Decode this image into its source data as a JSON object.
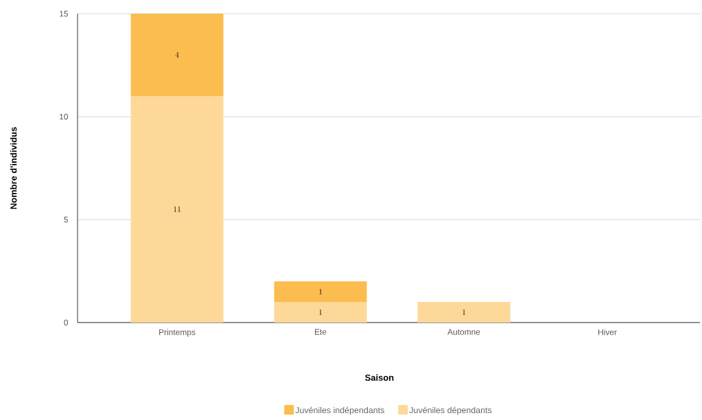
{
  "chart_data": {
    "type": "bar",
    "stacked": true,
    "xlabel": "Saison",
    "ylabel": "Nombre d'individus",
    "categories": [
      "Printemps",
      "Ete",
      "Automne",
      "Hiver"
    ],
    "series": [
      {
        "name": "Juvéniles dépendants",
        "color": "#fdd898",
        "values": [
          11,
          1,
          1,
          null
        ]
      },
      {
        "name": "Juvéniles indépendants",
        "color": "#fbbd4f",
        "values": [
          4,
          1,
          null,
          null
        ]
      }
    ],
    "ylim": [
      0,
      15
    ],
    "yticks": [
      0,
      5,
      10,
      15
    ],
    "grid": "y",
    "legend": "bottom",
    "data_labels": true
  }
}
